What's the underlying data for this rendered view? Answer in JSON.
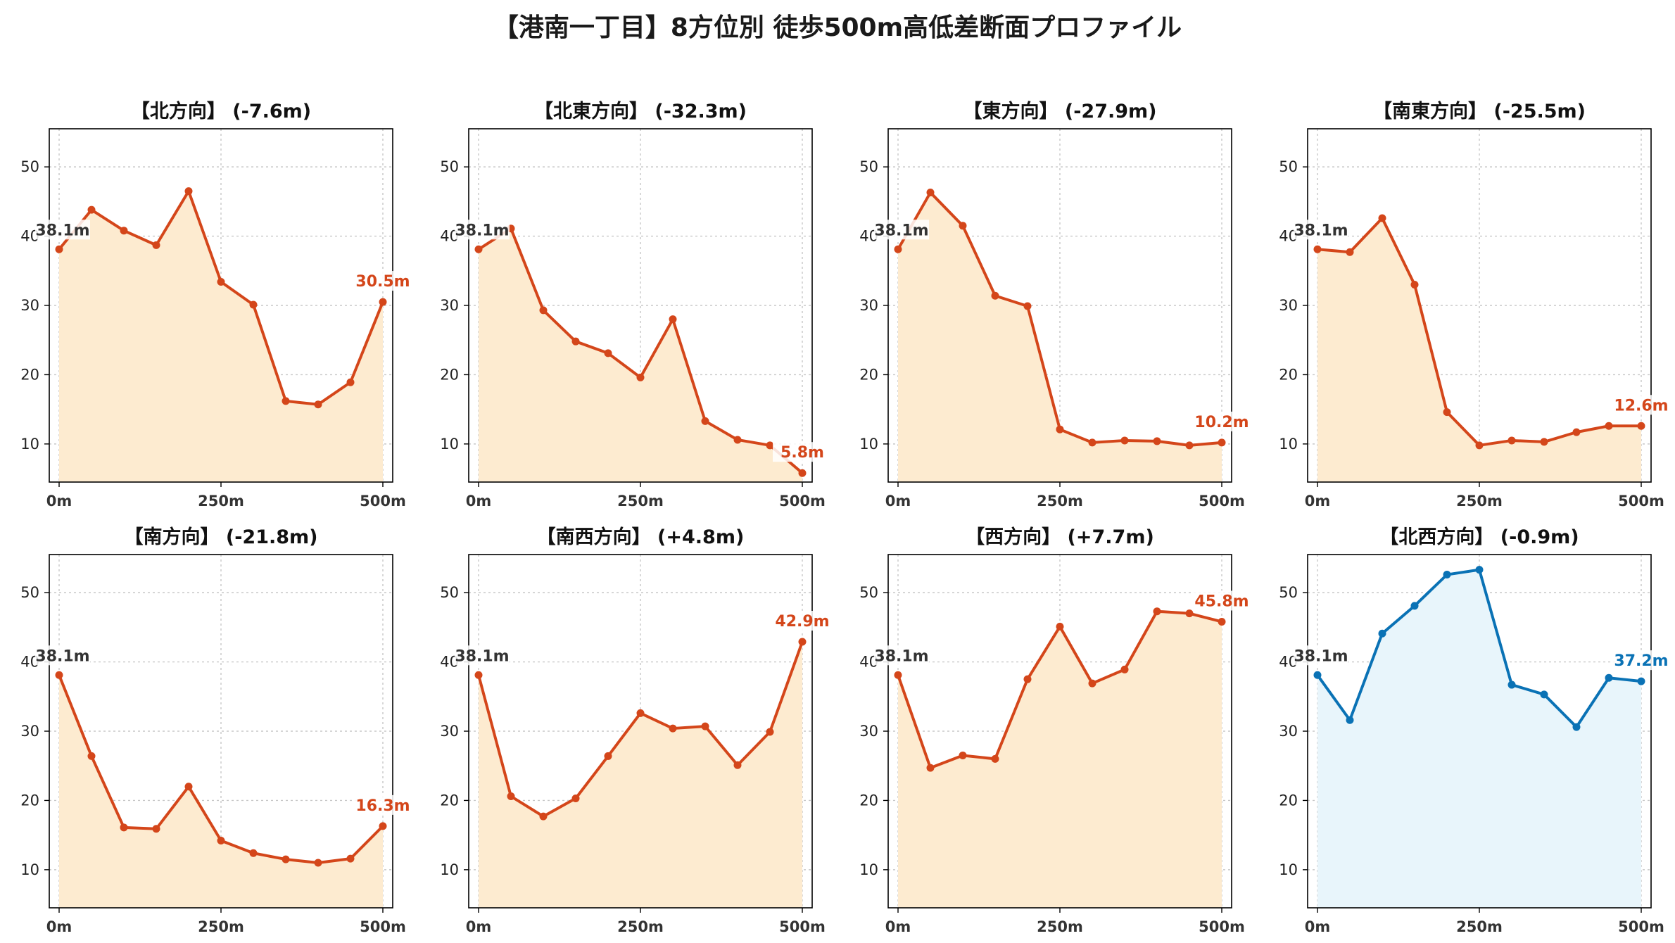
{
  "title": "【港南一丁目】8方位別 徒歩500m高低差断面プロファイル",
  "colors": {
    "down_line": "#d4461a",
    "down_fill": "#fdebd0",
    "up_line": "#0a72b5",
    "up_fill": "#e8f5fb",
    "start_label": "#333333",
    "grid": "#c8c8c8",
    "axis": "#000000"
  },
  "chart_data": [
    {
      "type": "area",
      "title": "【北方向】 (-7.6m)",
      "x": [
        0,
        50,
        100,
        150,
        200,
        250,
        300,
        350,
        400,
        450,
        500
      ],
      "y": [
        38.1,
        43.8,
        40.8,
        38.7,
        46.5,
        33.4,
        30.1,
        16.2,
        15.7,
        18.9,
        30.5
      ],
      "start_label": "38.1m",
      "end_label": "30.5m",
      "trend": "down",
      "xticks": [
        "0m",
        "250m",
        "500m"
      ],
      "yticks": [
        "10",
        "20",
        "30",
        "40",
        "50"
      ],
      "ylim": [
        4.5,
        55.5
      ],
      "grid": true
    },
    {
      "type": "area",
      "title": "【北東方向】 (-32.3m)",
      "x": [
        0,
        50,
        100,
        150,
        200,
        250,
        300,
        350,
        400,
        450,
        500
      ],
      "y": [
        38.1,
        41.1,
        29.3,
        24.8,
        23.1,
        19.6,
        28.0,
        13.3,
        10.6,
        9.8,
        5.8
      ],
      "start_label": "38.1m",
      "end_label": "5.8m",
      "trend": "down",
      "xticks": [
        "0m",
        "250m",
        "500m"
      ],
      "yticks": [
        "10",
        "20",
        "30",
        "40",
        "50"
      ],
      "ylim": [
        4.5,
        55.5
      ],
      "grid": true
    },
    {
      "type": "area",
      "title": "【東方向】 (-27.9m)",
      "x": [
        0,
        50,
        100,
        150,
        200,
        250,
        300,
        350,
        400,
        450,
        500
      ],
      "y": [
        38.1,
        46.3,
        41.5,
        31.4,
        29.9,
        12.1,
        10.2,
        10.5,
        10.4,
        9.8,
        10.2
      ],
      "start_label": "38.1m",
      "end_label": "10.2m",
      "trend": "down",
      "xticks": [
        "0m",
        "250m",
        "500m"
      ],
      "yticks": [
        "10",
        "20",
        "30",
        "40",
        "50"
      ],
      "ylim": [
        4.5,
        55.5
      ],
      "grid": true
    },
    {
      "type": "area",
      "title": "【南東方向】 (-25.5m)",
      "x": [
        0,
        50,
        100,
        150,
        200,
        250,
        300,
        350,
        400,
        450,
        500
      ],
      "y": [
        38.1,
        37.7,
        42.6,
        33.0,
        14.6,
        9.8,
        10.5,
        10.3,
        11.7,
        12.6,
        12.6
      ],
      "start_label": "38.1m",
      "end_label": "12.6m",
      "trend": "down",
      "xticks": [
        "0m",
        "250m",
        "500m"
      ],
      "yticks": [
        "10",
        "20",
        "30",
        "40",
        "50"
      ],
      "ylim": [
        4.5,
        55.5
      ],
      "grid": true
    },
    {
      "type": "area",
      "title": "【南方向】 (-21.8m)",
      "x": [
        0,
        50,
        100,
        150,
        200,
        250,
        300,
        350,
        400,
        450,
        500
      ],
      "y": [
        38.1,
        26.4,
        16.1,
        15.9,
        22.0,
        14.2,
        12.4,
        11.5,
        11.0,
        11.6,
        16.3
      ],
      "start_label": "38.1m",
      "end_label": "16.3m",
      "trend": "down",
      "xticks": [
        "0m",
        "250m",
        "500m"
      ],
      "yticks": [
        "10",
        "20",
        "30",
        "40",
        "50"
      ],
      "ylim": [
        4.5,
        55.5
      ],
      "grid": true
    },
    {
      "type": "area",
      "title": "【南西方向】 (+4.8m)",
      "x": [
        0,
        50,
        100,
        150,
        200,
        250,
        300,
        350,
        400,
        450,
        500
      ],
      "y": [
        38.1,
        20.6,
        17.7,
        20.3,
        26.4,
        32.6,
        30.4,
        30.7,
        25.1,
        29.9,
        42.9
      ],
      "start_label": "38.1m",
      "end_label": "42.9m",
      "trend": "down",
      "xticks": [
        "0m",
        "250m",
        "500m"
      ],
      "yticks": [
        "10",
        "20",
        "30",
        "40",
        "50"
      ],
      "ylim": [
        4.5,
        55.5
      ],
      "grid": true
    },
    {
      "type": "area",
      "title": "【西方向】 (+7.7m)",
      "x": [
        0,
        50,
        100,
        150,
        200,
        250,
        300,
        350,
        400,
        450,
        500
      ],
      "y": [
        38.1,
        24.7,
        26.5,
        26.0,
        37.5,
        45.1,
        36.9,
        38.9,
        47.3,
        47.0,
        45.8
      ],
      "start_label": "38.1m",
      "end_label": "45.8m",
      "trend": "down",
      "xticks": [
        "0m",
        "250m",
        "500m"
      ],
      "yticks": [
        "10",
        "20",
        "30",
        "40",
        "50"
      ],
      "ylim": [
        4.5,
        55.5
      ],
      "grid": true
    },
    {
      "type": "area",
      "title": "【北西方向】 (-0.9m)",
      "x": [
        0,
        50,
        100,
        150,
        200,
        250,
        300,
        350,
        400,
        450,
        500
      ],
      "y": [
        38.1,
        31.6,
        44.1,
        48.1,
        52.6,
        53.3,
        36.7,
        35.3,
        30.6,
        37.7,
        37.2
      ],
      "start_label": "38.1m",
      "end_label": "37.2m",
      "trend": "up",
      "xticks": [
        "0m",
        "250m",
        "500m"
      ],
      "yticks": [
        "10",
        "20",
        "30",
        "40",
        "50"
      ],
      "ylim": [
        4.5,
        55.5
      ],
      "grid": true
    }
  ]
}
